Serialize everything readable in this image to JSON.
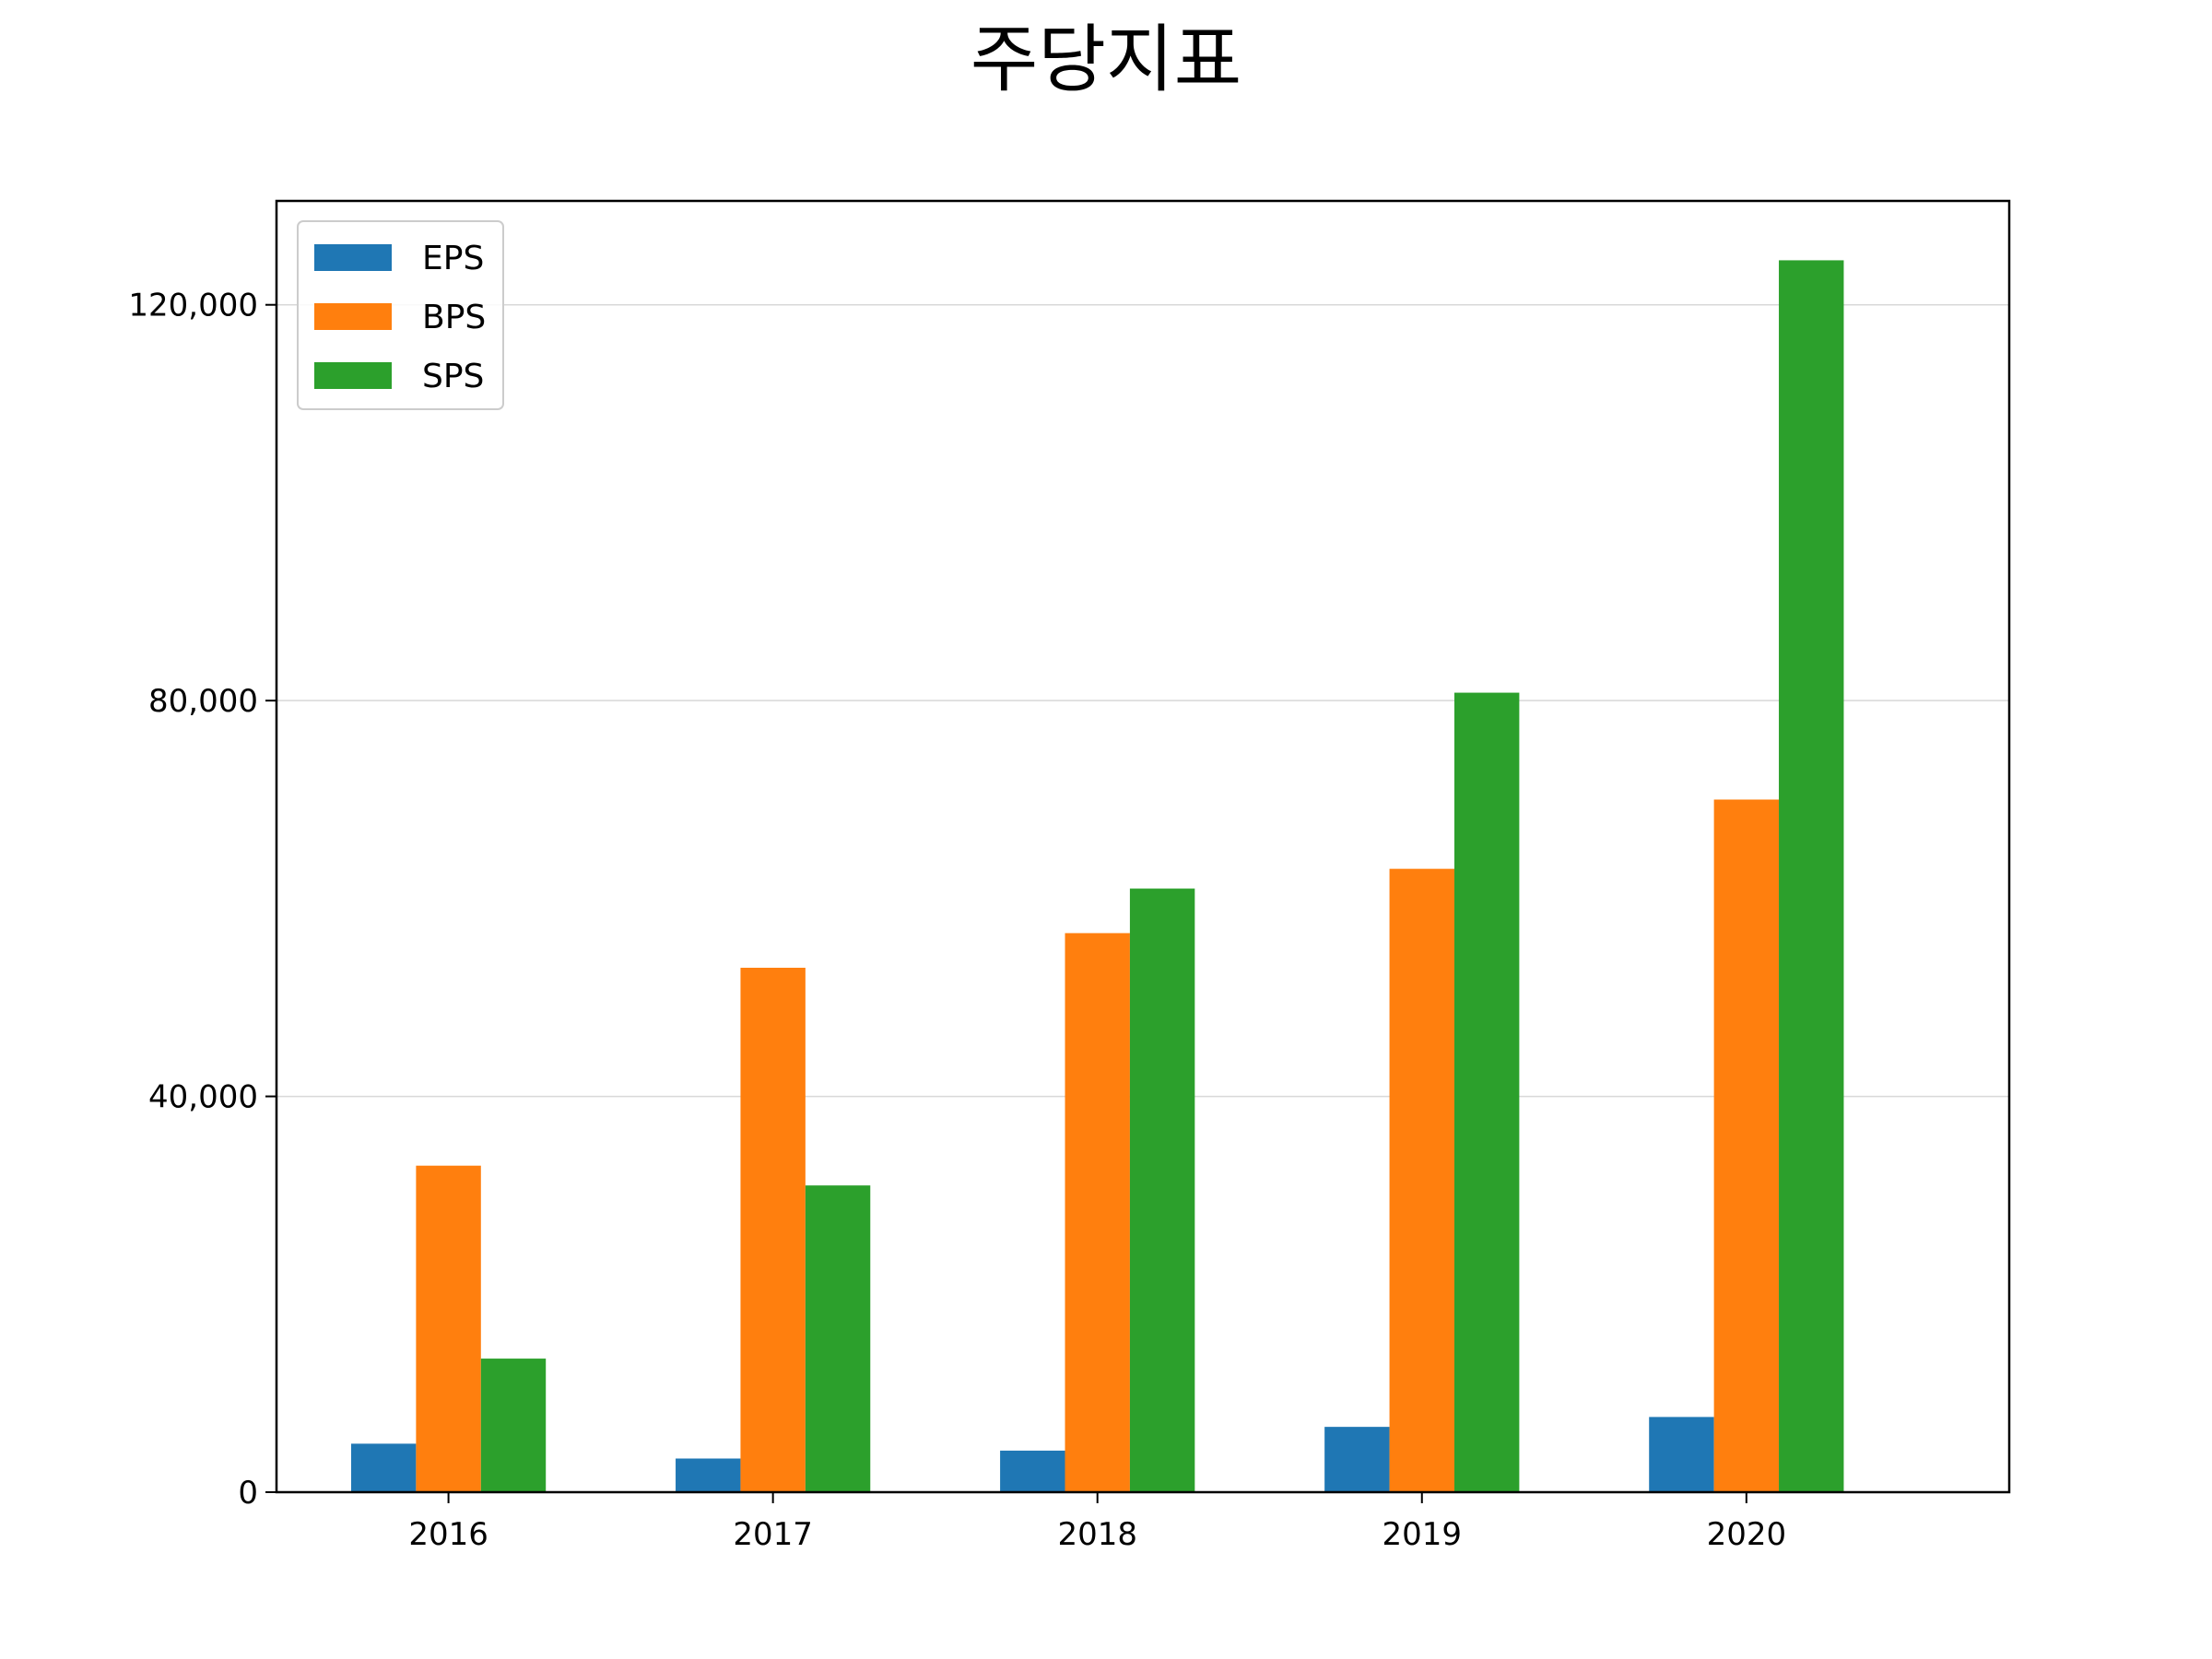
{
  "chart_data": {
    "type": "bar",
    "title": "주당지표",
    "xlabel": "",
    "ylabel": "",
    "categories": [
      "2016",
      "2017",
      "2018",
      "2019",
      "2020"
    ],
    "series": [
      {
        "name": "EPS",
        "color": "#1f77b4",
        "values": [
          4900,
          3400,
          4200,
          6600,
          7600
        ]
      },
      {
        "name": "BPS",
        "color": "#ff7f0e",
        "values": [
          33000,
          53000,
          56500,
          63000,
          70000
        ]
      },
      {
        "name": "SPS",
        "color": "#2ca02c",
        "values": [
          13500,
          31000,
          61000,
          80800,
          124500
        ]
      }
    ],
    "ylim": [
      0,
      130500
    ],
    "yticks": [
      0,
      40000,
      80000,
      120000
    ],
    "ytick_labels": [
      "0",
      "40,000",
      "80,000",
      "120,000"
    ],
    "grid": "horizontal",
    "legend_position": "top-left"
  }
}
